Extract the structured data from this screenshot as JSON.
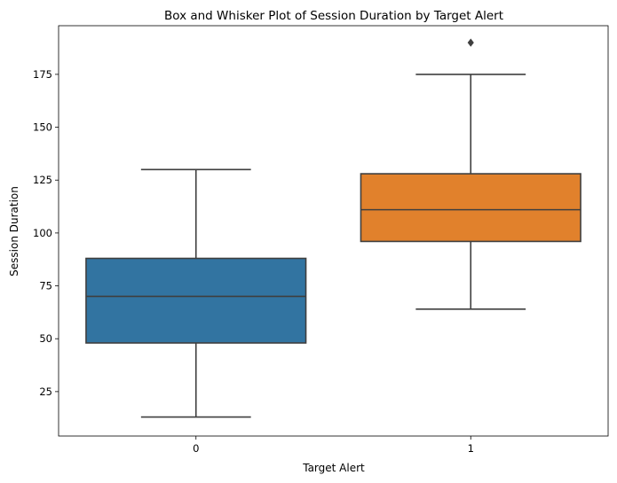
{
  "chart_data": {
    "type": "box",
    "title": "Box and Whisker Plot of Session Duration by Target Alert",
    "xlabel": "Target Alert",
    "ylabel": "Session Duration",
    "categories": [
      "0",
      "1"
    ],
    "yticks": [
      25,
      50,
      75,
      100,
      125,
      150,
      175
    ],
    "ylim": [
      4,
      198
    ],
    "grid": false,
    "legend": "none",
    "boxes": [
      {
        "category": "0",
        "whisker_low": 13,
        "q1": 48,
        "median": 70,
        "q3": 88,
        "whisker_high": 130,
        "outliers": [],
        "color": "#3274a1"
      },
      {
        "category": "1",
        "whisker_low": 64,
        "q1": 96,
        "median": 111,
        "q3": 128,
        "whisker_high": 175,
        "outliers": [
          190
        ],
        "color": "#e1812c"
      }
    ]
  }
}
